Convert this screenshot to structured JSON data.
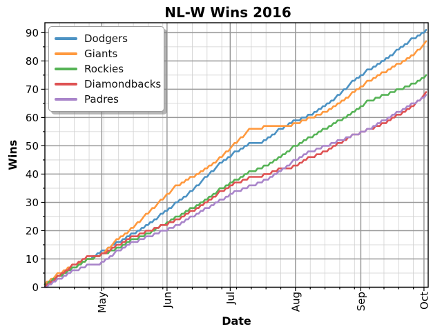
{
  "title": "NL-W Wins 2016",
  "axes": {
    "xlabel": "Date",
    "ylabel": "Wins"
  },
  "chart_data": {
    "type": "line",
    "title": "NL-W Wins 2016",
    "xlabel": "Date",
    "ylabel": "Wins",
    "x_unit": "days from season start (early April 2016)",
    "x_tick_labels": [
      "May",
      "Jun",
      "Jul",
      "Aug",
      "Sep",
      "Oct"
    ],
    "x_tick_days": [
      28,
      59,
      89,
      120,
      151,
      181
    ],
    "x_minor_tick_interval_days": 7,
    "xlim_days": [
      1,
      183
    ],
    "yticks": [
      0,
      10,
      20,
      30,
      40,
      50,
      60,
      70,
      80,
      90
    ],
    "y_minor_ticks": [
      5,
      15,
      25,
      35,
      45,
      55,
      65,
      75,
      85
    ],
    "ylim": [
      0,
      93.5
    ],
    "grid": {
      "major": true,
      "minor": true
    },
    "legend_position": "upper left",
    "x_days": [
      0,
      7,
      14,
      21,
      28,
      35,
      42,
      49,
      56,
      63,
      70,
      77,
      84,
      91,
      98,
      105,
      112,
      119,
      126,
      133,
      140,
      147,
      154,
      161,
      168,
      175,
      182
    ],
    "series": [
      {
        "name": "Dodgers",
        "color": "#4c92c3",
        "values": [
          0,
          4,
          7,
          10,
          13,
          16,
          19,
          22,
          26,
          30,
          34,
          39,
          44,
          48,
          51,
          52,
          56,
          59,
          61,
          64,
          68,
          73,
          77,
          80,
          84,
          88,
          91
        ]
      },
      {
        "name": "Giants",
        "color": "#ff993e",
        "values": [
          1,
          5,
          8,
          10,
          12,
          17,
          21,
          26,
          31,
          36,
          39,
          42,
          46,
          51,
          56,
          57,
          57,
          58,
          60,
          62,
          65,
          69,
          73,
          76,
          79,
          82,
          87
        ]
      },
      {
        "name": "Rockies",
        "color": "#56b356",
        "values": [
          1,
          4,
          7,
          10,
          12,
          14,
          17,
          19,
          22,
          25,
          28,
          31,
          35,
          38,
          41,
          43,
          46,
          50,
          53,
          56,
          59,
          62,
          66,
          68,
          70,
          72,
          75
        ]
      },
      {
        "name": "Diamondbacks",
        "color": "#de5253",
        "values": [
          0,
          4,
          8,
          11,
          12,
          15,
          18,
          20,
          22,
          24,
          27,
          30,
          34,
          37,
          39,
          40,
          42,
          43,
          46,
          48,
          51,
          54,
          56,
          58,
          61,
          64,
          69
        ]
      },
      {
        "name": "Padres",
        "color": "#a985ca",
        "values": [
          0,
          3,
          6,
          8,
          9,
          13,
          16,
          18,
          20,
          22,
          25,
          28,
          31,
          34,
          36,
          38,
          41,
          45,
          48,
          50,
          52,
          54,
          56,
          59,
          62,
          65,
          68
        ]
      }
    ],
    "final_wins": {
      "Dodgers": 91,
      "Giants": 87,
      "Rockies": 75,
      "Diamondbacks": 69,
      "Padres": 68
    },
    "style": {
      "major_grid_color": "#999999",
      "minor_grid_color": "#cfcfcf",
      "spine_color": "#000000",
      "background": "#ffffff"
    }
  }
}
